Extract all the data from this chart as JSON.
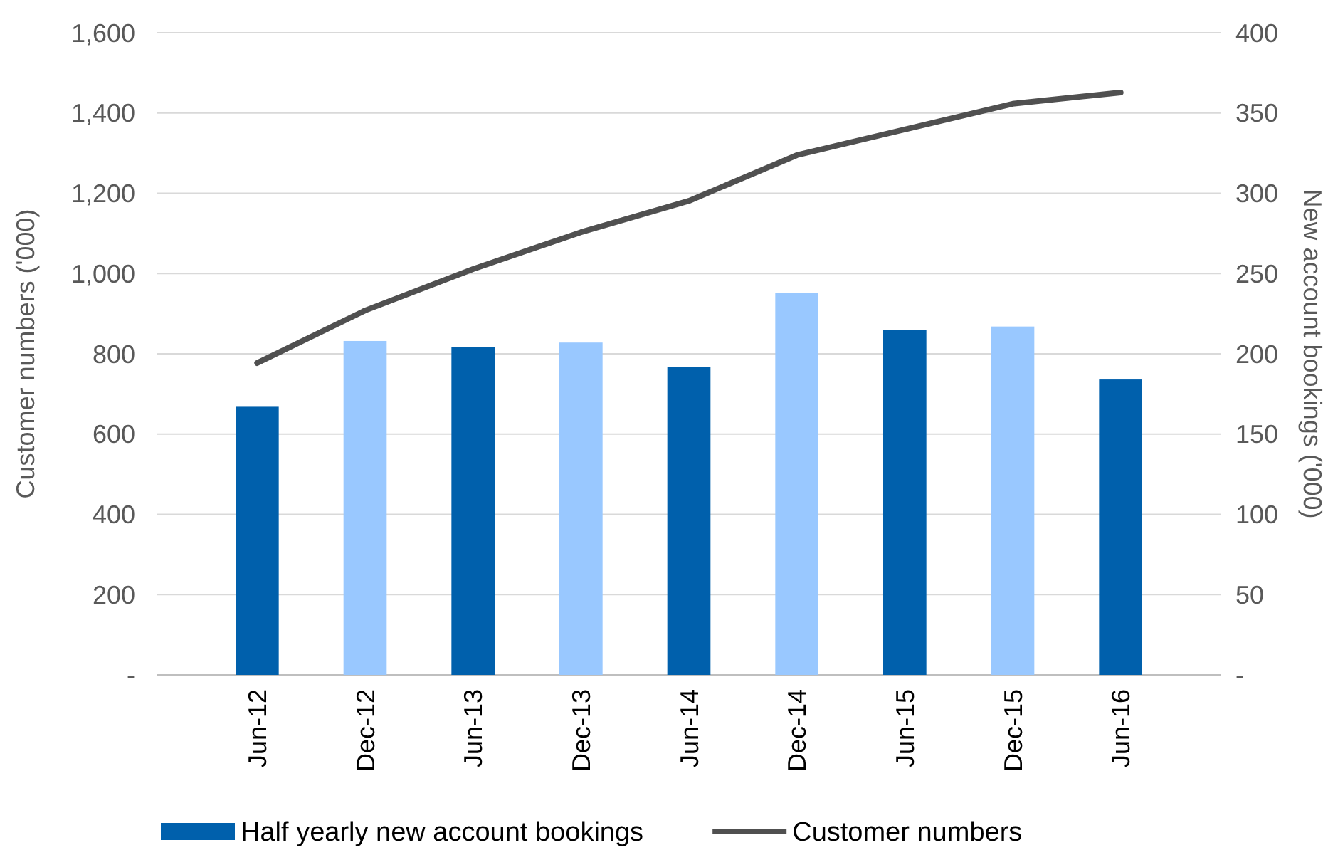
{
  "chart_data": {
    "type": "bar",
    "categories": [
      "Jun-12",
      "Dec-12",
      "Jun-13",
      "Dec-13",
      "Jun-14",
      "Dec-14",
      "Jun-15",
      "Dec-15",
      "Jun-16"
    ],
    "ylabel": "Customer numbers ('000)",
    "y2label": "New account bookings ('000)",
    "ylim": [
      0,
      1600
    ],
    "yticks": [
      {
        "value": 0,
        "label": "-"
      },
      {
        "value": 200,
        "label": "200"
      },
      {
        "value": 400,
        "label": "400"
      },
      {
        "value": 600,
        "label": "600"
      },
      {
        "value": 800,
        "label": "800"
      },
      {
        "value": 1000,
        "label": "1,000"
      },
      {
        "value": 1200,
        "label": "1,200"
      },
      {
        "value": 1400,
        "label": "1,400"
      },
      {
        "value": 1600,
        "label": "1,600"
      }
    ],
    "y2lim": [
      0,
      400
    ],
    "y2ticks": [
      {
        "value": 0,
        "label": "-"
      },
      50,
      100,
      150,
      200,
      250,
      300,
      350,
      400
    ],
    "grid": "y",
    "legend": "bottom",
    "series": [
      {
        "name": "Half yearly new account bookings",
        "axis": "y2",
        "color": "#0060ac",
        "colors": [
          "#0060ac",
          "#99c8ff",
          "#0060ac",
          "#99c8ff",
          "#0060ac",
          "#99c8ff",
          "#0060ac",
          "#99c8ff",
          "#0060ac"
        ],
        "values": [
          167,
          208,
          204,
          207,
          192,
          238,
          215,
          217,
          184
        ]
      },
      {
        "name": "Customer numbers",
        "type": "line",
        "axis": "y",
        "color": "#505050",
        "values": [
          777,
          908,
          1011,
          1103,
          1181,
          1295,
          1359,
          1423,
          1451
        ]
      }
    ]
  }
}
